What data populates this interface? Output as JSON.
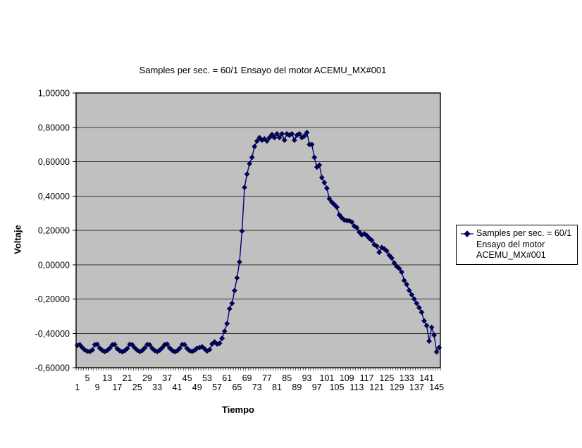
{
  "chart": {
    "title": "Samples per sec. = 60/1 Ensayo del motor ACEMU_MX#001",
    "y_axis_label": "Voltaje",
    "x_axis_label": "Tiempo",
    "legend": {
      "lines": [
        "Samples per sec. = 60/1",
        "Ensayo del motor",
        "ACEMU_MX#001"
      ]
    }
  },
  "chart_data": {
    "type": "line",
    "title": "Samples per sec. = 60/1 Ensayo del motor ACEMU_MX#001",
    "xlabel": "Tiempo",
    "ylabel": "Voltaje",
    "ylim": [
      -0.6,
      1.0
    ],
    "y_tick_step": 0.2,
    "y_tick_labels": [
      "1,00000",
      "0,80000",
      "0,60000",
      "0,40000",
      "0,20000",
      "0,00000",
      "-0,20000",
      "-0,40000",
      "-0,60000"
    ],
    "x_range": [
      1,
      146
    ],
    "x_tick_interval": 4,
    "x_tick_labels_row_near_axis": [
      "5",
      "13",
      "21",
      "29",
      "37",
      "45",
      "53",
      "61",
      "69",
      "77",
      "85",
      "93",
      "101",
      "109",
      "117",
      "125",
      "133",
      "141"
    ],
    "x_tick_labels_row_far": [
      "1",
      "9",
      "17",
      "25",
      "33",
      "41",
      "49",
      "57",
      "65",
      "73",
      "81",
      "89",
      "97",
      "105",
      "113",
      "121",
      "129",
      "137",
      "145"
    ],
    "grid": "horizontal",
    "legend_position": "right",
    "colors": {
      "line": "#000080",
      "marker_fill": "#000080",
      "marker_edge": "#00001a",
      "plot_bg": "#c0c0c0",
      "gridline": "#333333",
      "axis": "#000000"
    },
    "series": [
      {
        "name": "Samples per sec. = 60/1 Ensayo del motor ACEMU_MX#001",
        "values": [
          -0.47,
          -0.466,
          -0.483,
          -0.497,
          -0.504,
          -0.506,
          -0.497,
          -0.466,
          -0.464,
          -0.486,
          -0.499,
          -0.506,
          -0.499,
          -0.486,
          -0.467,
          -0.465,
          -0.489,
          -0.501,
          -0.507,
          -0.501,
          -0.488,
          -0.464,
          -0.466,
          -0.484,
          -0.498,
          -0.506,
          -0.5,
          -0.485,
          -0.465,
          -0.467,
          -0.487,
          -0.5,
          -0.506,
          -0.498,
          -0.484,
          -0.466,
          -0.463,
          -0.485,
          -0.499,
          -0.507,
          -0.502,
          -0.487,
          -0.465,
          -0.466,
          -0.488,
          -0.501,
          -0.505,
          -0.499,
          -0.486,
          -0.483,
          -0.478,
          -0.49,
          -0.503,
          -0.495,
          -0.462,
          -0.45,
          -0.462,
          -0.458,
          -0.429,
          -0.388,
          -0.343,
          -0.257,
          -0.225,
          -0.151,
          -0.077,
          0.016,
          0.196,
          0.45,
          0.527,
          0.588,
          0.625,
          0.688,
          0.72,
          0.74,
          0.725,
          0.733,
          0.72,
          0.74,
          0.758,
          0.74,
          0.762,
          0.74,
          0.762,
          0.725,
          0.762,
          0.754,
          0.762,
          0.725,
          0.754,
          0.762,
          0.74,
          0.75,
          0.77,
          0.7,
          0.7,
          0.625,
          0.568,
          0.58,
          0.507,
          0.478,
          0.445,
          0.384,
          0.364,
          0.35,
          0.335,
          0.29,
          0.273,
          0.26,
          0.257,
          0.256,
          0.248,
          0.224,
          0.216,
          0.19,
          0.174,
          0.18,
          0.17,
          0.154,
          0.142,
          0.117,
          0.108,
          0.072,
          0.1,
          0.092,
          0.08,
          0.055,
          0.039,
          0.01,
          -0.01,
          -0.022,
          -0.043,
          -0.092,
          -0.115,
          -0.15,
          -0.175,
          -0.2,
          -0.225,
          -0.25,
          -0.277,
          -0.327,
          -0.355,
          -0.445,
          -0.365,
          -0.41,
          -0.508,
          -0.483
        ]
      }
    ]
  }
}
